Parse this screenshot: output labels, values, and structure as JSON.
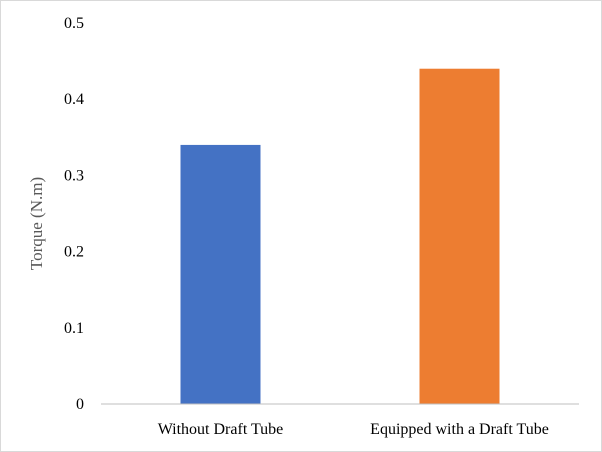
{
  "chart_data": {
    "type": "bar",
    "title": "",
    "xlabel": "",
    "ylabel": "Torque (N.m)",
    "categories": [
      "Without Draft Tube",
      "Equipped with a Draft Tube"
    ],
    "values": [
      0.34,
      0.44
    ],
    "colors": [
      "#4472C4",
      "#ED7D31"
    ],
    "ylim": [
      0,
      0.5
    ],
    "yticks": [
      0,
      0.1,
      0.2,
      0.3,
      0.4,
      0.5
    ],
    "ytick_labels": [
      "0",
      "0.1",
      "0.2",
      "0.3",
      "0.4",
      "0.5"
    ],
    "grid": false,
    "legend": "none"
  }
}
